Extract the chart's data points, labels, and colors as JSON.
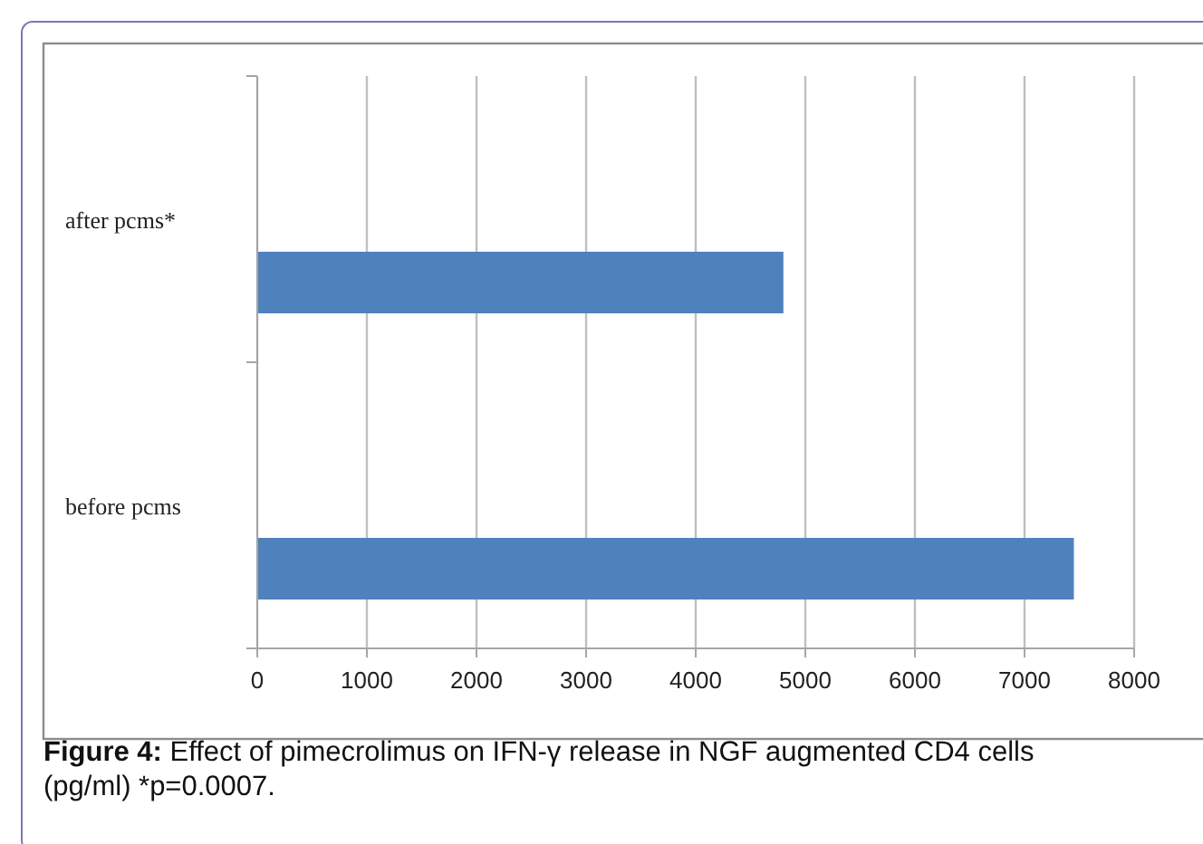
{
  "chart_data": {
    "type": "bar",
    "orientation": "horizontal",
    "categories": [
      "after pcms*",
      "before pcms"
    ],
    "values": [
      4800,
      7450
    ],
    "color": "#4f81bd",
    "xlim": [
      0,
      8000
    ],
    "xticks": [
      0,
      1000,
      2000,
      3000,
      4000,
      5000,
      6000,
      7000,
      8000
    ],
    "grid": "x",
    "annotations": [
      "Figure 4: Effect of pimecrolimus on IFN-γ release in NGF augmented CD4 cells (pg/ml) *p=0.0007."
    ]
  }
}
